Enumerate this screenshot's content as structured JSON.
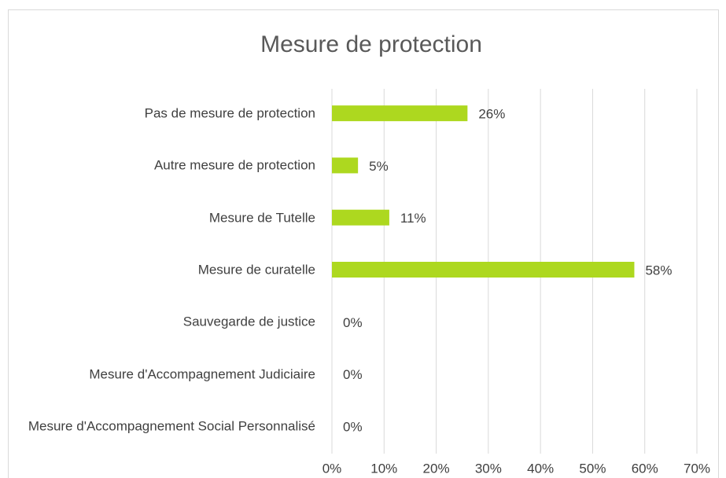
{
  "chart_data": {
    "type": "bar",
    "orientation": "horizontal",
    "title": "Mesure de protection",
    "categories": [
      "Pas de mesure de protection",
      "Autre mesure de protection",
      "Mesure de Tutelle",
      "Mesure de curatelle",
      "Sauvegarde de justice",
      "Mesure d'Accompagnement Judiciaire",
      "Mesure d'Accompagnement Social Personnalisé"
    ],
    "values": [
      26,
      5,
      11,
      58,
      0,
      0,
      0
    ],
    "value_labels": [
      "26%",
      "5%",
      "11%",
      "58%",
      "0%",
      "0%",
      "0%"
    ],
    "color": "#add81f",
    "xlim": [
      0,
      70
    ],
    "xticks": [
      {
        "value": 0,
        "label": "0%"
      },
      {
        "value": 10,
        "label": "10%"
      },
      {
        "value": 20,
        "label": "20%"
      },
      {
        "value": 30,
        "label": "30%"
      },
      {
        "value": 40,
        "label": "40%"
      },
      {
        "value": 50,
        "label": "50%"
      },
      {
        "value": 60,
        "label": "60%"
      },
      {
        "value": 70,
        "label": "70%"
      }
    ],
    "grid": true
  }
}
